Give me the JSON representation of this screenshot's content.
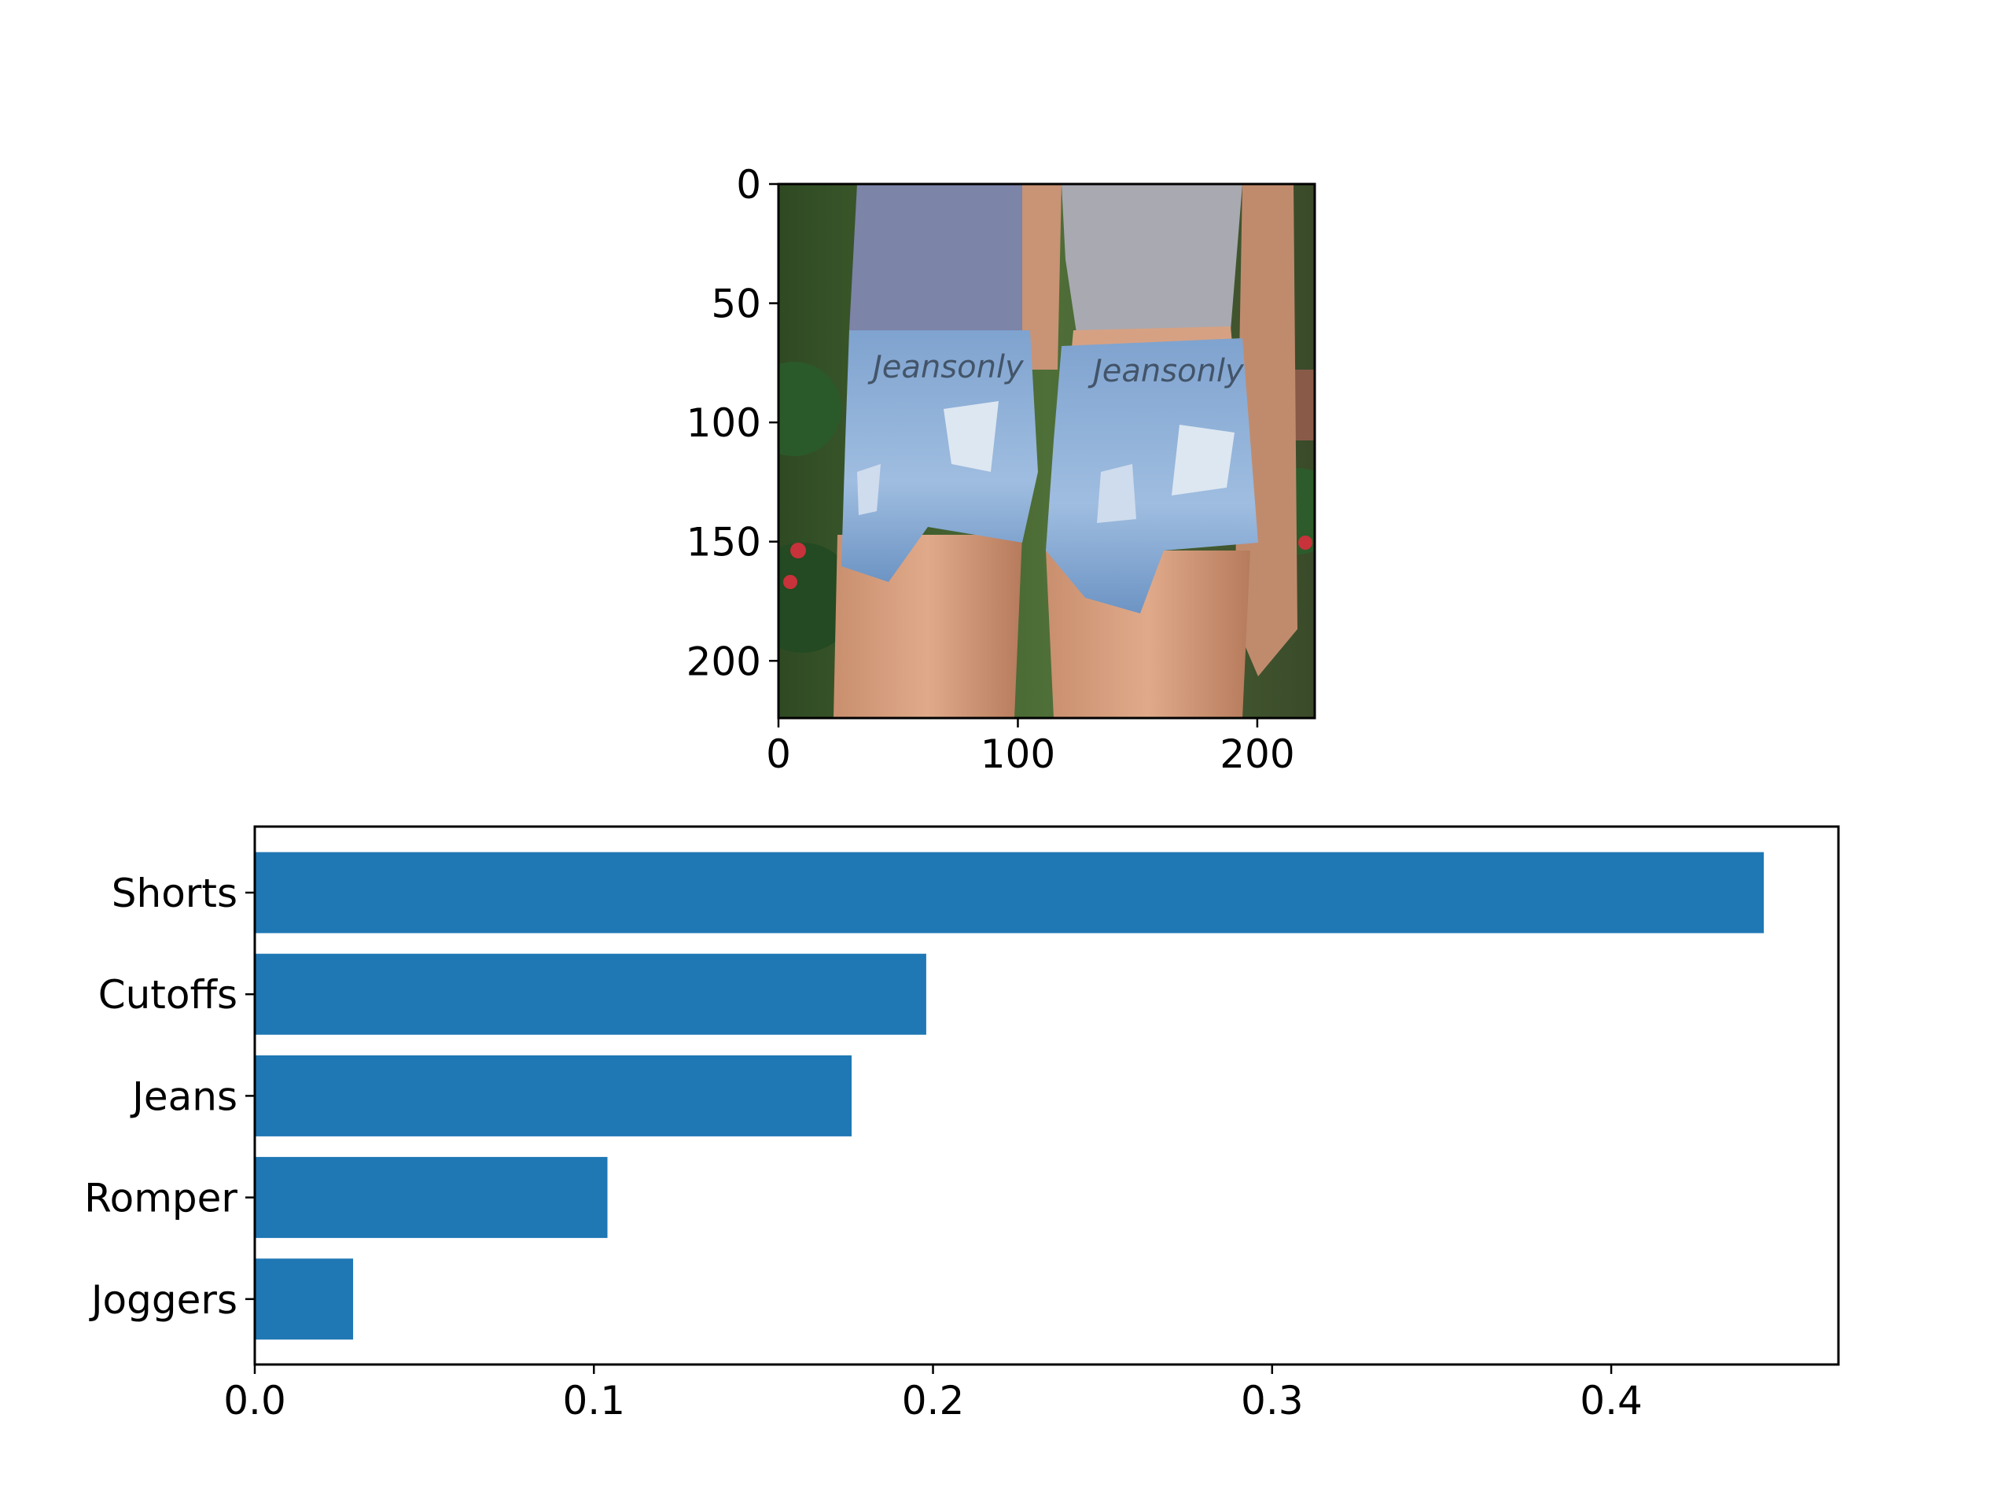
{
  "chart_data": [
    {
      "type": "image",
      "xlim": [
        0,
        224
      ],
      "ylim": [
        224,
        0
      ],
      "xticks": [
        "0",
        "100",
        "200"
      ],
      "xtick_values": [
        0,
        100,
        200
      ],
      "yticks": [
        "0",
        "50",
        "100",
        "150",
        "200"
      ],
      "ytick_values": [
        0,
        50,
        100,
        150,
        200
      ],
      "watermark": "Jeansonly"
    },
    {
      "type": "bar",
      "orientation": "horizontal",
      "categories": [
        "Shorts",
        "Cutoffs",
        "Jeans",
        "Romper",
        "Joggers"
      ],
      "values": [
        0.445,
        0.198,
        0.176,
        0.104,
        0.029
      ],
      "xlim": [
        0,
        0.467
      ],
      "xticks": [
        "0.0",
        "0.1",
        "0.2",
        "0.3",
        "0.4"
      ],
      "xtick_values": [
        0.0,
        0.1,
        0.2,
        0.3,
        0.4
      ],
      "bar_color": "#1f77b4",
      "title": "",
      "xlabel": "",
      "ylabel": "",
      "grid": false
    }
  ]
}
